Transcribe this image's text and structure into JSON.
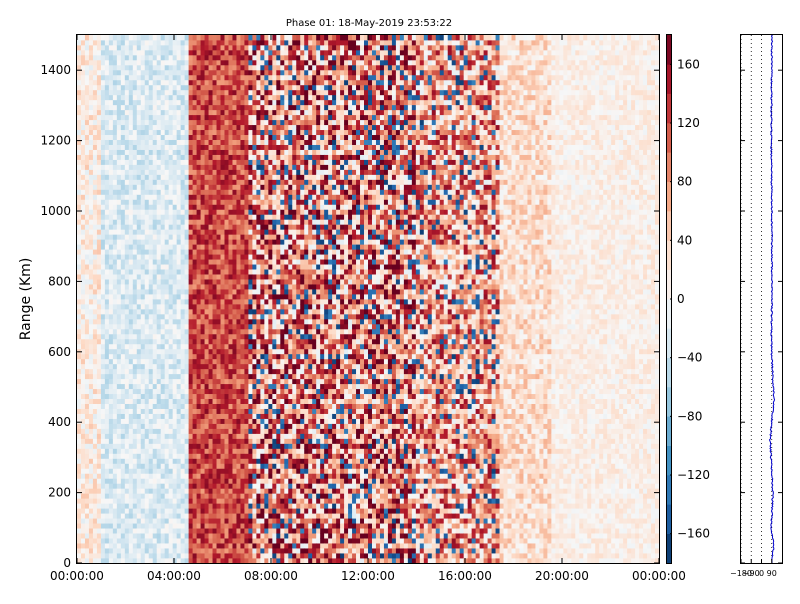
{
  "chart_data": [
    {
      "type": "heatmap",
      "title": "Phase 01: 18-May-2019 23:53:22",
      "xlabel": "",
      "ylabel": "Range (Km)",
      "x_ticks": [
        "00:00:00",
        "04:00:00",
        "08:00:00",
        "12:00:00",
        "16:00:00",
        "20:00:00",
        "00:00:00"
      ],
      "x_range_hours": [
        0,
        24
      ],
      "y_ticks": [
        0,
        200,
        400,
        600,
        800,
        1000,
        1200,
        1400
      ],
      "ylim": [
        0,
        1500
      ],
      "colorbar": {
        "ticks": [
          160,
          120,
          80,
          40,
          0,
          -40,
          -80,
          -120,
          -160
        ],
        "vmin": -180,
        "vmax": 180,
        "colormap": [
          "#053061",
          "#2166ac",
          "#4393c3",
          "#92c5de",
          "#d1e5f0",
          "#f7f7f7",
          "#fddbc7",
          "#f4a582",
          "#d6604d",
          "#b2182b",
          "#67001f"
        ]
      },
      "time_segments": [
        {
          "from_hour": 0.0,
          "to_hour": 1.0,
          "mean_phase": 15,
          "spread": 35
        },
        {
          "from_hour": 1.0,
          "to_hour": 4.6,
          "mean_phase": -25,
          "spread": 30
        },
        {
          "from_hour": 4.6,
          "to_hour": 7.0,
          "mean_phase": 120,
          "spread": 45
        },
        {
          "from_hour": 7.0,
          "to_hour": 14.0,
          "mean_phase": 90,
          "spread": 110
        },
        {
          "from_hour": 14.0,
          "to_hour": 17.5,
          "mean_phase": 70,
          "spread": 90
        },
        {
          "from_hour": 17.5,
          "to_hour": 19.5,
          "mean_phase": 30,
          "spread": 35
        },
        {
          "from_hour": 19.5,
          "to_hour": 24.0,
          "mean_phase": 12,
          "spread": 20
        }
      ]
    },
    {
      "type": "line",
      "title": "",
      "x_ticks": [
        "-180",
        "-90",
        "0",
        "90"
      ],
      "xlim": [
        -180,
        180
      ],
      "ylim": [
        0,
        1500
      ],
      "color": "#0000cc",
      "profile_mean_phase": 90,
      "profile_anomalies": [
        {
          "range_km": 0,
          "phase": 90
        },
        {
          "range_km": 50,
          "phase": 108
        },
        {
          "range_km": 100,
          "phase": 85
        },
        {
          "range_km": 200,
          "phase": 100
        },
        {
          "range_km": 350,
          "phase": 75
        },
        {
          "range_km": 470,
          "phase": 110
        },
        {
          "range_km": 600,
          "phase": 88
        },
        {
          "range_km": 800,
          "phase": 92
        },
        {
          "range_km": 1000,
          "phase": 90
        },
        {
          "range_km": 1200,
          "phase": 86
        },
        {
          "range_km": 1500,
          "phase": 92
        }
      ]
    }
  ]
}
